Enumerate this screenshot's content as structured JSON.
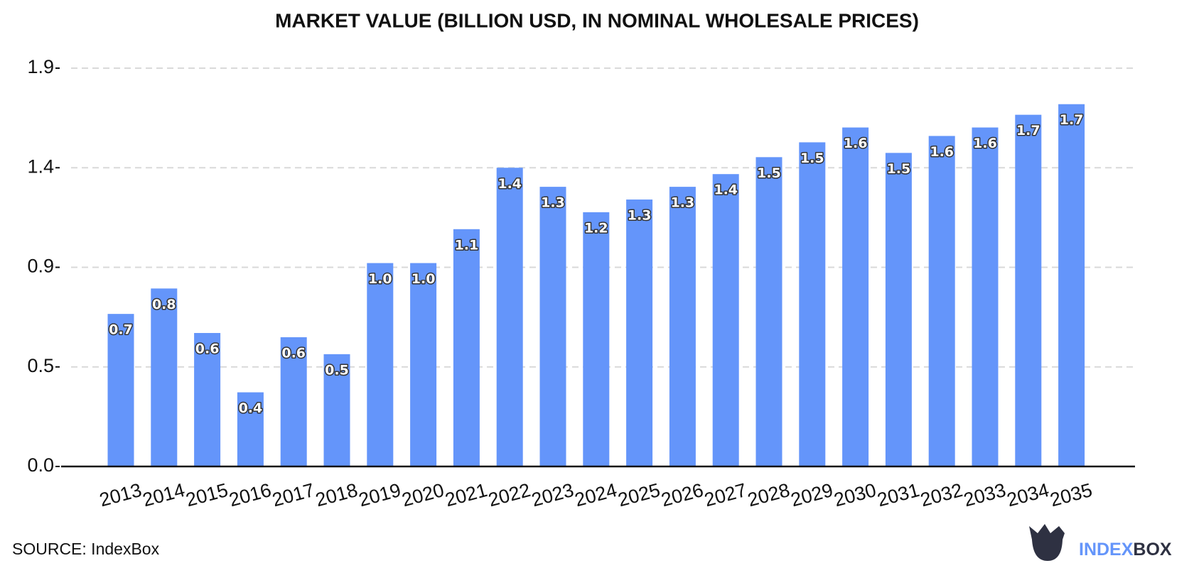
{
  "chart_data": {
    "type": "bar",
    "title": "MARKET VALUE (BILLION USD, IN NOMINAL WHOLESALE PRICES)",
    "categories": [
      "2013",
      "2014",
      "2015",
      "2016",
      "2017",
      "2018",
      "2019",
      "2020",
      "2021",
      "2022",
      "2023",
      "2024",
      "2025",
      "2026",
      "2027",
      "2028",
      "2029",
      "2030",
      "2031",
      "2032",
      "2033",
      "2034",
      "2035"
    ],
    "values": [
      0.72,
      0.84,
      0.63,
      0.35,
      0.61,
      0.53,
      0.96,
      0.96,
      1.12,
      1.41,
      1.32,
      1.2,
      1.26,
      1.32,
      1.38,
      1.46,
      1.53,
      1.6,
      1.48,
      1.56,
      1.6,
      1.66,
      1.71
    ],
    "value_labels": [
      "0.7",
      "0.8",
      "0.6",
      "0.4",
      "0.6",
      "0.5",
      "1.0",
      "1.0",
      "1.1",
      "1.4",
      "1.3",
      "1.2",
      "1.3",
      "1.3",
      "1.4",
      "1.5",
      "1.5",
      "1.6",
      "1.5",
      "1.6",
      "1.6",
      "1.7",
      "1.7"
    ],
    "color": "#6495fa",
    "ylim": [
      0,
      1.88
    ],
    "yticks": [
      {
        "value": 0,
        "label": "0.0"
      },
      {
        "value": 0.47,
        "label": "0.5"
      },
      {
        "value": 0.94,
        "label": "0.9"
      },
      {
        "value": 1.41,
        "label": "1.4"
      },
      {
        "value": 1.88,
        "label": "1.9"
      }
    ],
    "grid": true,
    "source": "SOURCE: IndexBox",
    "logo": [
      "INDEX",
      "BOX"
    ]
  }
}
